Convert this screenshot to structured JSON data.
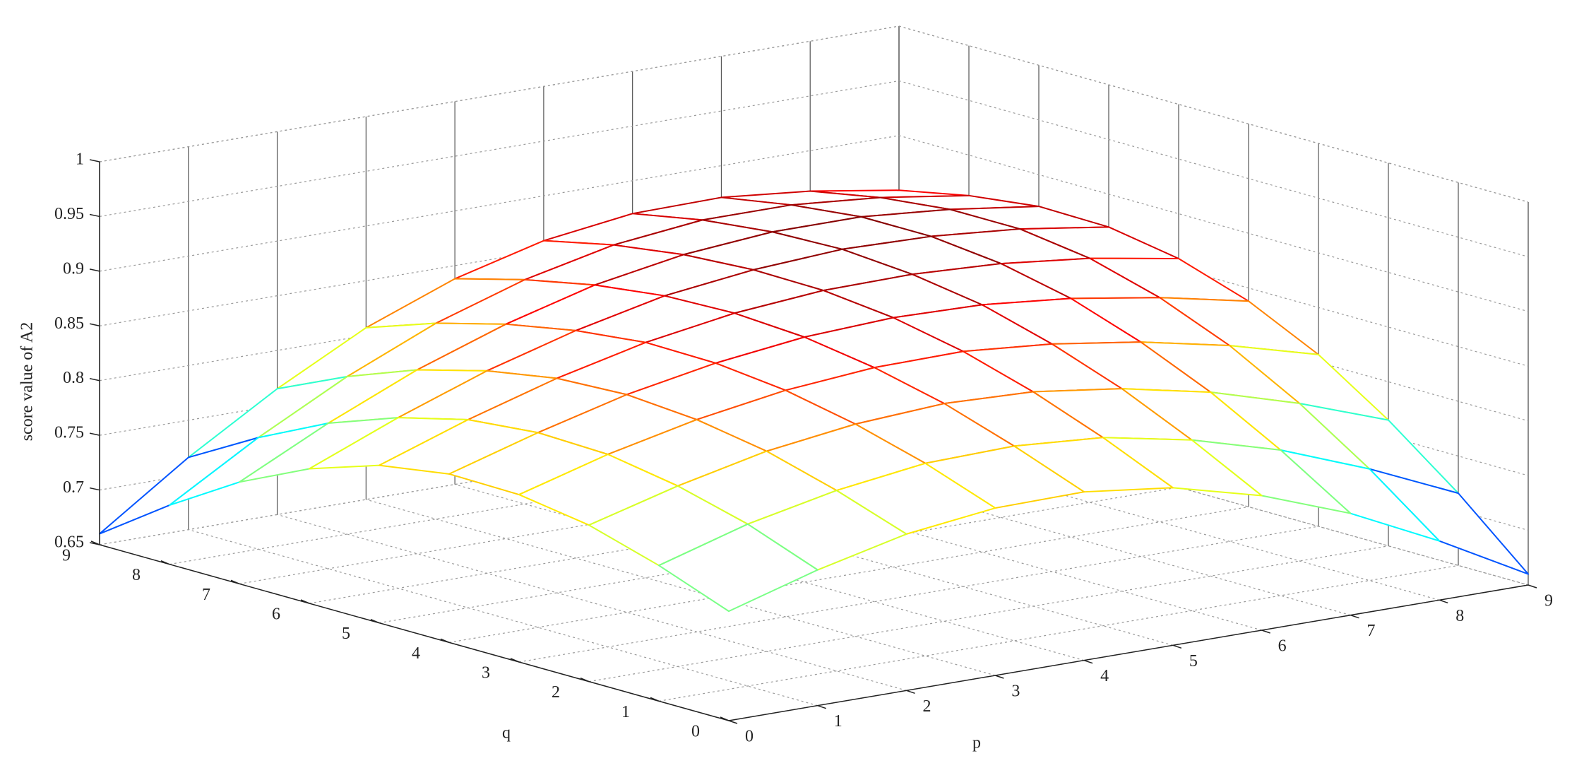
{
  "chart_data": {
    "type": "mesh",
    "xlabel": "p",
    "ylabel": "q",
    "zlabel": "score value of A2",
    "x": [
      0,
      1,
      2,
      3,
      4,
      5,
      6,
      7,
      8,
      9
    ],
    "y": [
      0,
      1,
      2,
      3,
      4,
      5,
      6,
      7,
      8,
      9
    ],
    "z": [
      [
        0.75,
        0.774,
        0.793,
        0.803,
        0.804,
        0.794,
        0.773,
        0.743,
        0.704,
        0.66
      ],
      [
        0.774,
        0.798,
        0.815,
        0.826,
        0.828,
        0.822,
        0.806,
        0.783,
        0.752,
        0.716
      ],
      [
        0.793,
        0.815,
        0.833,
        0.844,
        0.849,
        0.846,
        0.835,
        0.818,
        0.794,
        0.765
      ],
      [
        0.803,
        0.826,
        0.844,
        0.857,
        0.864,
        0.865,
        0.858,
        0.846,
        0.829,
        0.807
      ],
      [
        0.804,
        0.828,
        0.849,
        0.864,
        0.874,
        0.878,
        0.876,
        0.868,
        0.855,
        0.838
      ],
      [
        0.794,
        0.822,
        0.846,
        0.865,
        0.878,
        0.885,
        0.886,
        0.882,
        0.873,
        0.859
      ],
      [
        0.773,
        0.806,
        0.835,
        0.858,
        0.876,
        0.886,
        0.891,
        0.889,
        0.882,
        0.87
      ],
      [
        0.743,
        0.783,
        0.818,
        0.846,
        0.868,
        0.882,
        0.889,
        0.889,
        0.882,
        0.871
      ],
      [
        0.704,
        0.752,
        0.794,
        0.829,
        0.855,
        0.873,
        0.882,
        0.882,
        0.875,
        0.863
      ],
      [
        0.66,
        0.716,
        0.765,
        0.807,
        0.838,
        0.859,
        0.87,
        0.871,
        0.863,
        0.85
      ]
    ],
    "xlim": [
      0,
      9
    ],
    "ylim": [
      0,
      9
    ],
    "zlim": [
      0.65,
      1
    ],
    "xticks": [
      0,
      1,
      2,
      3,
      4,
      5,
      6,
      7,
      8,
      9
    ],
    "yticks": [
      0,
      1,
      2,
      3,
      4,
      5,
      6,
      7,
      8,
      9
    ],
    "zticks": [
      0.65,
      0.7,
      0.75,
      0.8,
      0.85,
      0.9,
      0.95,
      1
    ],
    "colormap": "jet",
    "grid": true
  }
}
